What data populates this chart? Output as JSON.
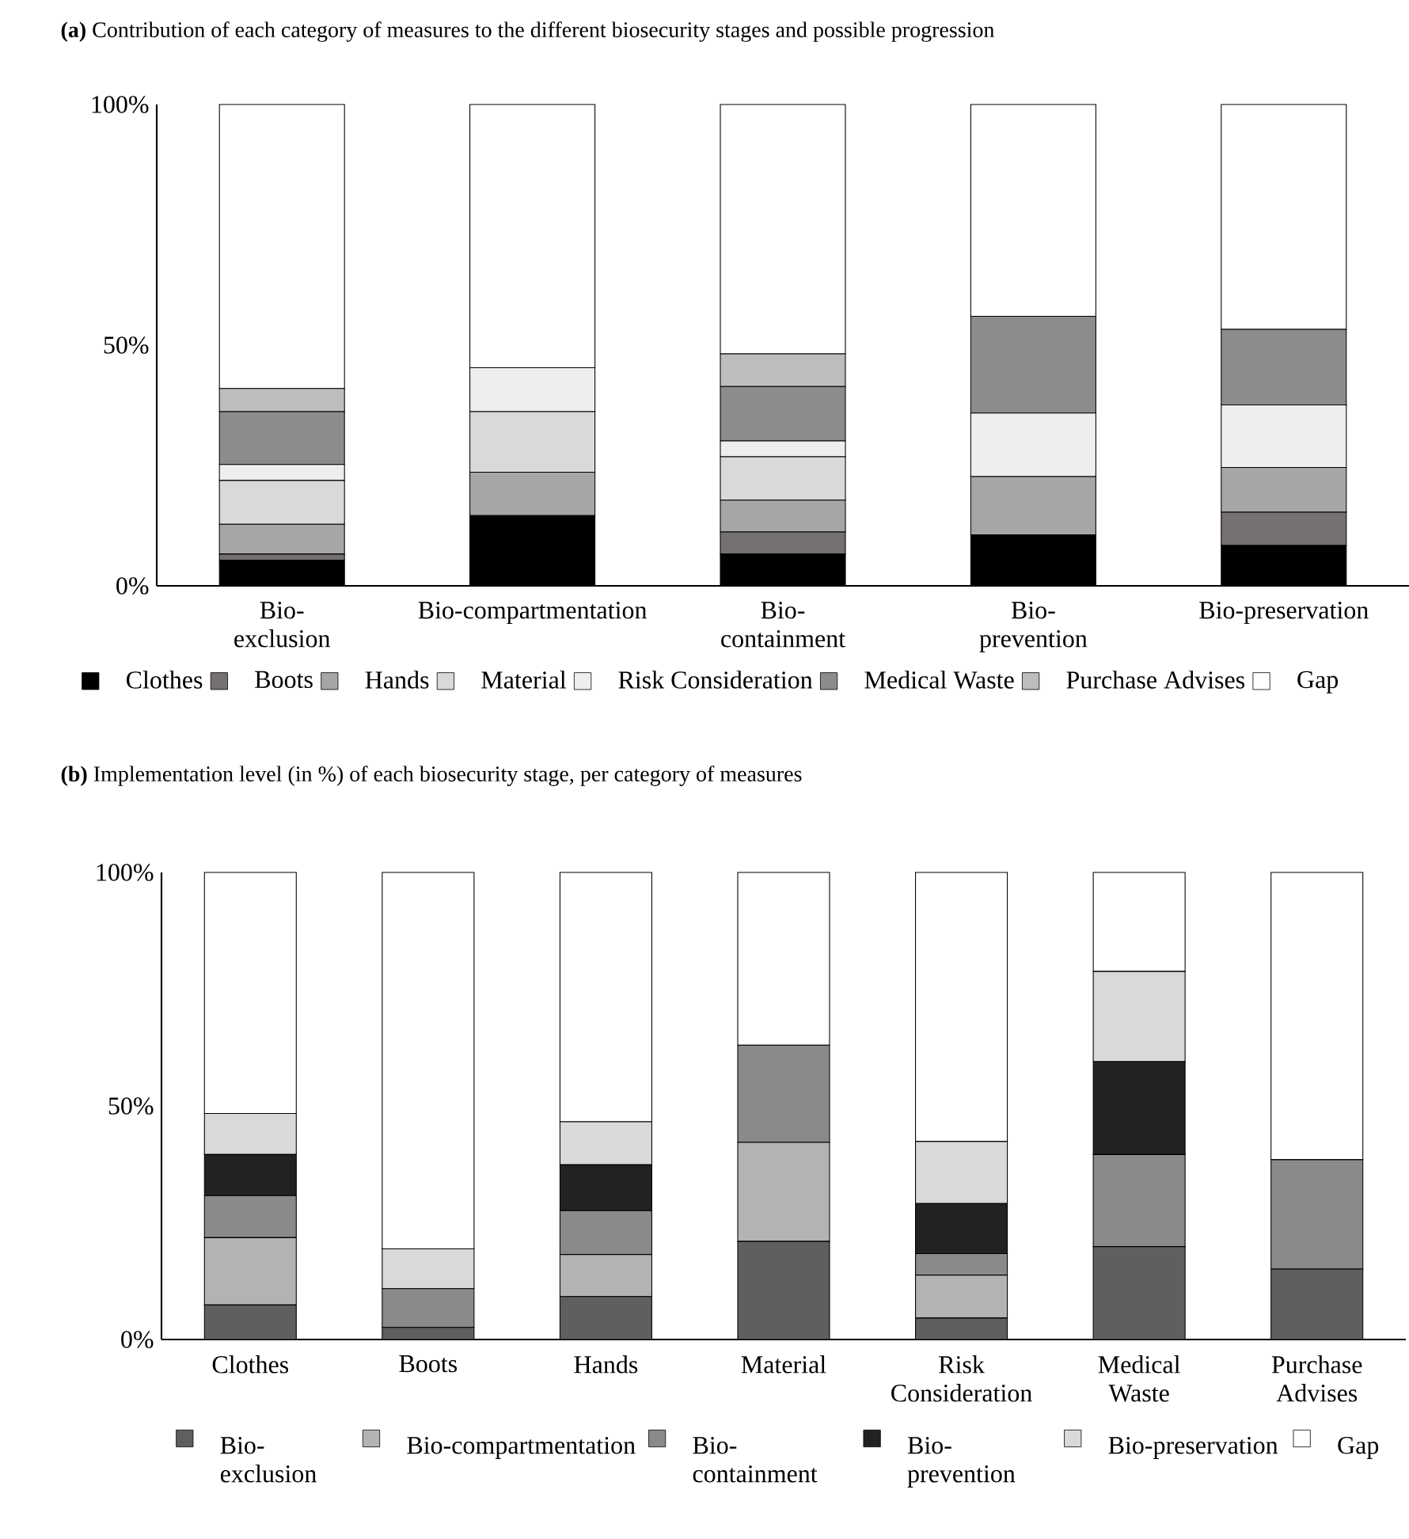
{
  "chart_data": [
    {
      "type": "bar",
      "stacked": true,
      "title": "**(a)** Contribution of each category of measures to the different biosecurity stages and possible progression",
      "categories": [
        "Bio-exclusion",
        "Bio-compartmentation",
        "Bio-containment",
        "Bio-prevention",
        "Bio-preservation"
      ],
      "ylim": [
        0,
        100
      ],
      "yticks": [
        {
          "value": 0,
          "label": "0%"
        },
        {
          "value": 50,
          "label": "50%"
        },
        {
          "value": 100,
          "label": "100%"
        }
      ],
      "legend": "bottom",
      "series": [
        {
          "name": "Clothes",
          "color": "#000000",
          "values": [
            5.3,
            14.6,
            6.6,
            10.6,
            8.4
          ]
        },
        {
          "name": "Boots",
          "color": "#767171",
          "values": [
            1.3,
            0,
            4.6,
            0,
            6.9
          ]
        },
        {
          "name": "Hands",
          "color": "#a6a6a6",
          "values": [
            6.2,
            9.0,
            6.6,
            12.1,
            9.3
          ]
        },
        {
          "name": "Material",
          "color": "#d9d9d9",
          "values": [
            9.1,
            12.6,
            9.0,
            0,
            0
          ]
        },
        {
          "name": "Risk Consideration",
          "color": "#eeeeee",
          "values": [
            3.3,
            9.1,
            3.3,
            13.2,
            13.0
          ]
        },
        {
          "name": "Medical Waste",
          "color": "#8c8c8c",
          "values": [
            11.0,
            0,
            11.3,
            20.1,
            15.7
          ]
        },
        {
          "name": "Purchase Advises",
          "color": "#bdbdbd",
          "values": [
            4.8,
            0,
            6.8,
            0,
            0
          ]
        },
        {
          "name": "Gap",
          "color": "#ffffff",
          "values": [
            59.0,
            54.7,
            51.8,
            44.0,
            46.7
          ]
        }
      ]
    },
    {
      "type": "bar",
      "stacked": true,
      "title": "**(b)** Implementation level (in %) of each biosecurity stage, per category of measures",
      "categories": [
        "Clothes",
        "Boots",
        "Hands",
        "Material",
        "Risk Consideration",
        "Medical Waste",
        "Purchase Advises"
      ],
      "ylim": [
        0,
        100
      ],
      "yticks": [
        {
          "value": 0,
          "label": "0%"
        },
        {
          "value": 50,
          "label": "50%"
        },
        {
          "value": 100,
          "label": "100%"
        }
      ],
      "legend": "bottom",
      "series": [
        {
          "name": "Bio-exclusion",
          "color": "#5f5f5f",
          "values": [
            7.4,
            2.6,
            9.2,
            21.0,
            4.6,
            19.9,
            15.1
          ]
        },
        {
          "name": "Bio-compartmentation",
          "color": "#b3b3b3",
          "values": [
            14.4,
            0,
            9.0,
            21.2,
            9.2,
            0,
            0
          ]
        },
        {
          "name": "Bio-containment",
          "color": "#8a8a8a",
          "values": [
            9.0,
            8.3,
            9.4,
            20.8,
            4.6,
            19.7,
            23.4
          ]
        },
        {
          "name": "Bio-prevention",
          "color": "#222222",
          "values": [
            8.8,
            0,
            9.8,
            0,
            10.7,
            19.9,
            0
          ]
        },
        {
          "name": "Bio-preservation",
          "color": "#d9d9d9",
          "values": [
            8.8,
            8.5,
            9.2,
            0,
            13.3,
            19.3,
            0
          ]
        },
        {
          "name": "Gap",
          "color": "#ffffff",
          "values": [
            51.6,
            80.6,
            53.4,
            37.0,
            57.6,
            21.2,
            61.5
          ]
        }
      ]
    }
  ]
}
